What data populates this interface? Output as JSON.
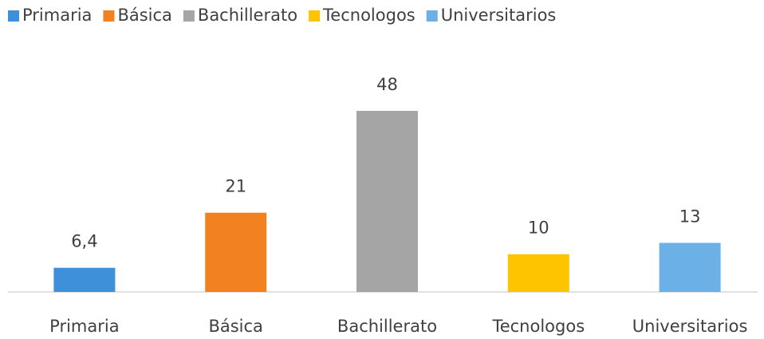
{
  "chart_data": {
    "type": "bar",
    "categories": [
      "Primaria",
      "Básica",
      "Bachillerato",
      "Tecnologos",
      "Universitarios"
    ],
    "values": [
      6.4,
      21,
      48,
      10,
      13
    ],
    "value_labels": [
      "6,4",
      "21",
      "48",
      "10",
      "13"
    ],
    "colors": [
      "#3e90d8",
      "#f28220",
      "#a5a5a5",
      "#ffc400",
      "#6cb0e8"
    ],
    "ylim": [
      0,
      50
    ],
    "legend": "top"
  }
}
